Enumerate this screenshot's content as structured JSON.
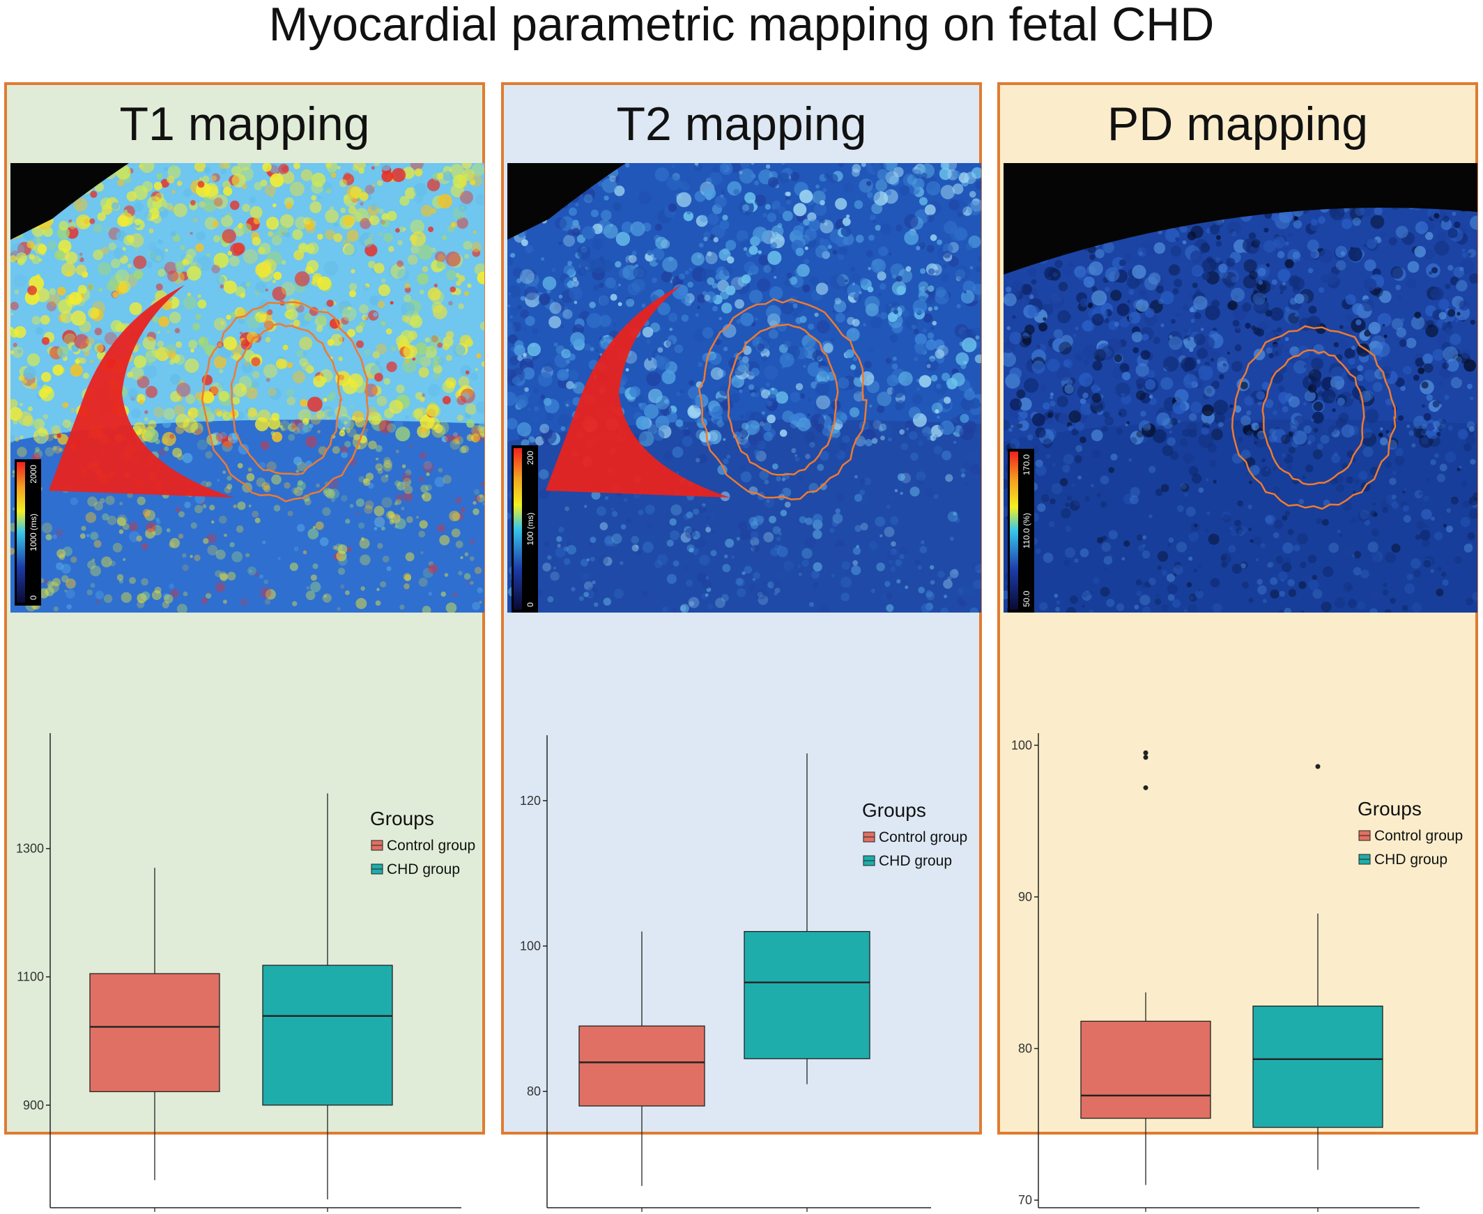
{
  "title": "Myocardial parametric mapping on fetal CHD",
  "colors": {
    "panel_border": "#e07b30",
    "control": "#e07063",
    "chd": "#1fadab"
  },
  "panels": [
    {
      "id": "t1",
      "title": "T1 mapping",
      "background": "#e0ecd7",
      "map": {
        "type": "t1",
        "colorbar_labels": [
          "2000",
          "1000 (ms)",
          "0"
        ]
      },
      "chart_data": {
        "type": "box",
        "categories": [
          "Control group",
          "CHD group"
        ],
        "ylim": [
          740,
          1480
        ],
        "yticks": [
          900,
          1100,
          1300
        ],
        "legend_title": "Groups",
        "legend_position": "right",
        "grid": false,
        "series": [
          {
            "name": "Control group",
            "whisker_low": 783,
            "q1": 921,
            "median": 1022,
            "q3": 1105,
            "whisker_high": 1270,
            "outliers": []
          },
          {
            "name": "CHD group",
            "whisker_low": 753,
            "q1": 900,
            "median": 1039,
            "q3": 1118,
            "whisker_high": 1386,
            "outliers": []
          }
        ]
      }
    },
    {
      "id": "t2",
      "title": "T2 mapping",
      "background": "#dde8f4",
      "map": {
        "type": "t2",
        "colorbar_labels": [
          "200",
          "100 (ms)",
          "0"
        ]
      },
      "chart_data": {
        "type": "box",
        "categories": [
          "Control group",
          "CHD group"
        ],
        "ylim": [
          64,
          129
        ],
        "yticks": [
          80,
          100,
          120
        ],
        "legend_title": "Groups",
        "legend_position": "right",
        "grid": false,
        "series": [
          {
            "name": "Control group",
            "whisker_low": 67,
            "q1": 78,
            "median": 84,
            "q3": 89,
            "whisker_high": 102,
            "outliers": []
          },
          {
            "name": "CHD group",
            "whisker_low": 81,
            "q1": 84.5,
            "median": 95,
            "q3": 102,
            "whisker_high": 126.5,
            "outliers": []
          }
        ]
      }
    },
    {
      "id": "pd",
      "title": "PD mapping",
      "background": "#fbedcb",
      "map": {
        "type": "pd",
        "colorbar_labels": [
          "170.0",
          "110.0 (%)",
          "50.0"
        ]
      },
      "chart_data": {
        "type": "box",
        "categories": [
          "Control group",
          "CHD group"
        ],
        "ylim": [
          69.5,
          100.8
        ],
        "yticks": [
          70,
          80,
          90,
          100
        ],
        "legend_title": "Groups",
        "legend_position": "right",
        "grid": false,
        "series": [
          {
            "name": "Control group",
            "whisker_low": 71,
            "q1": 75.4,
            "median": 76.9,
            "q3": 81.8,
            "whisker_high": 83.7,
            "outliers": [
              99.5,
              99.2,
              97.2
            ]
          },
          {
            "name": "CHD group",
            "whisker_low": 72,
            "q1": 74.8,
            "median": 79.3,
            "q3": 82.8,
            "whisker_high": 88.9,
            "outliers": [
              98.6
            ]
          }
        ]
      }
    }
  ]
}
